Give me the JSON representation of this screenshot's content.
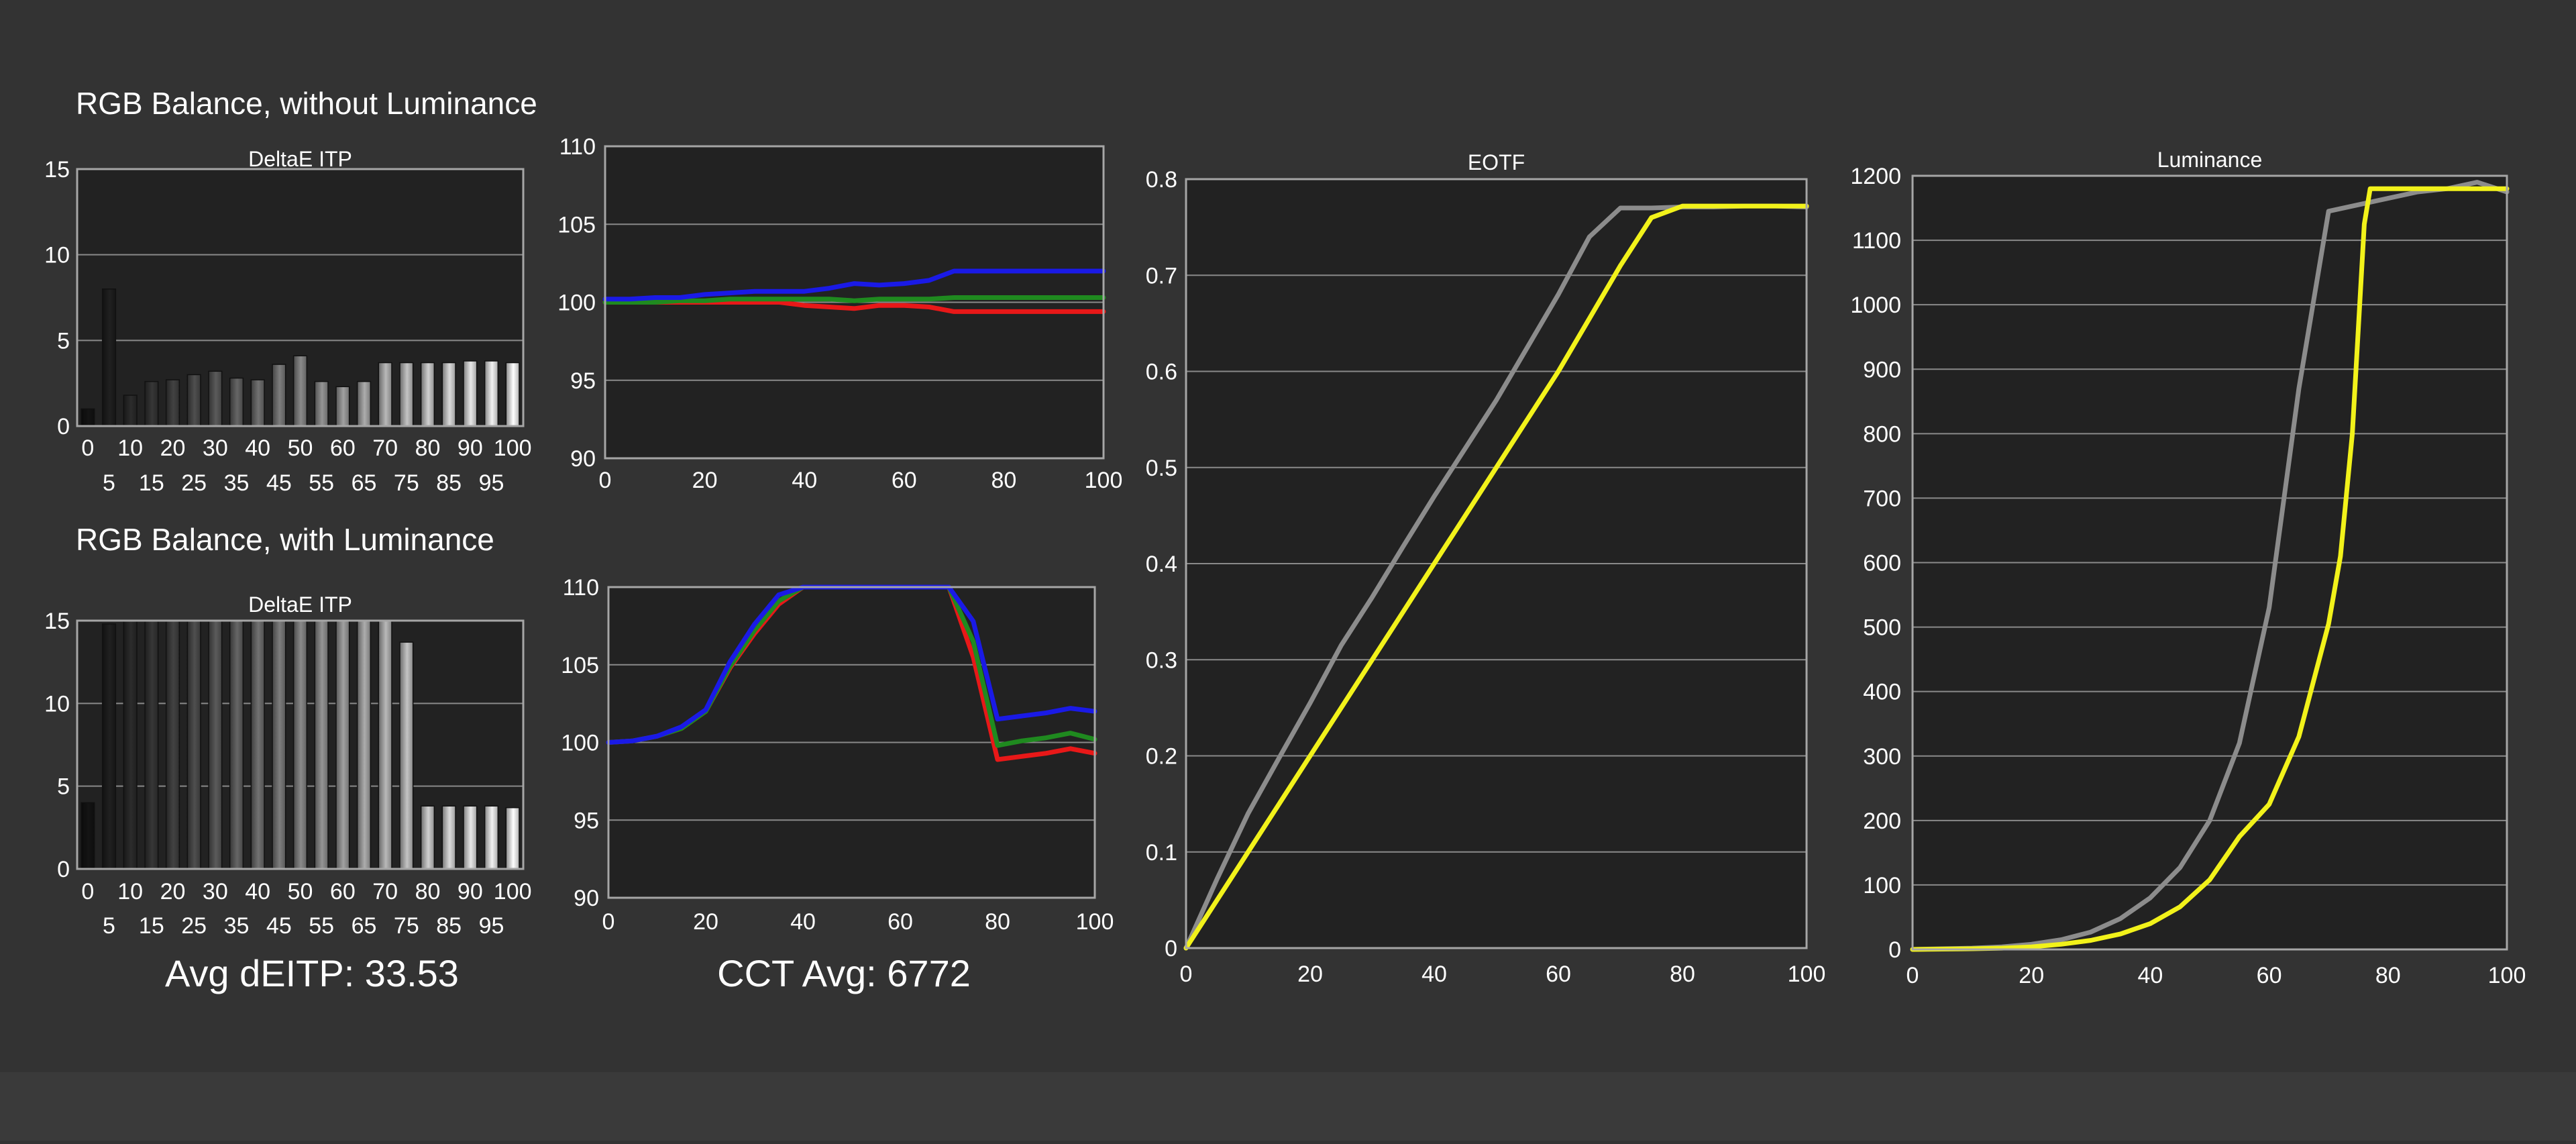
{
  "sections": {
    "top_title": "RGB Balance, without Luminance",
    "bottom_title": "RGB Balance, with Luminance"
  },
  "summary": {
    "avg_deitp": "Avg dEITP: 33.53",
    "cct_avg": "CCT Avg: 6772"
  },
  "colors": {
    "red": "#e81818",
    "green": "#1f8a1f",
    "blue": "#1a1ae6",
    "gray": "#8c8c8c",
    "yellow": "#f2f21a",
    "background": "#333333",
    "plot": "#222222"
  },
  "chart_data": [
    {
      "id": "deltae-top",
      "type": "bar",
      "title": "DeltaE ITP",
      "categories": [
        "0",
        "5",
        "10",
        "15",
        "20",
        "25",
        "30",
        "35",
        "40",
        "45",
        "50",
        "55",
        "60",
        "65",
        "70",
        "75",
        "80",
        "85",
        "90",
        "95",
        "100"
      ],
      "values": [
        1.0,
        8.0,
        1.8,
        2.6,
        2.7,
        3.0,
        3.2,
        2.8,
        2.7,
        3.6,
        4.1,
        2.6,
        2.3,
        2.6,
        3.7,
        3.7,
        3.7,
        3.7,
        3.8,
        3.8,
        3.7
      ],
      "ylim": [
        0,
        15
      ],
      "yticks": [
        "0",
        "5",
        "10",
        "15"
      ],
      "grid": true
    },
    {
      "id": "rgb-top",
      "type": "line",
      "title": "",
      "xlim": [
        0,
        100
      ],
      "ylim": [
        90,
        110
      ],
      "xticks": [
        "0",
        "20",
        "40",
        "60",
        "80",
        "100"
      ],
      "yticks": [
        "90",
        "95",
        "100",
        "105",
        "110"
      ],
      "grid": true,
      "series": [
        {
          "color": "#e81818",
          "x": [
            0,
            5,
            10,
            15,
            20,
            25,
            30,
            35,
            40,
            45,
            50,
            55,
            60,
            65,
            70,
            75,
            80,
            85,
            90,
            95,
            100
          ],
          "y": [
            100,
            100,
            100,
            100,
            100,
            100,
            100,
            100,
            99.8,
            99.7,
            99.6,
            99.8,
            99.8,
            99.7,
            99.4,
            99.4,
            99.4,
            99.4,
            99.4,
            99.4,
            99.4
          ]
        },
        {
          "color": "#1f8a1f",
          "x": [
            0,
            5,
            10,
            15,
            20,
            25,
            30,
            35,
            40,
            45,
            50,
            55,
            60,
            65,
            70,
            75,
            80,
            85,
            90,
            95,
            100
          ],
          "y": [
            100,
            100,
            100,
            100.1,
            100.1,
            100.2,
            100.2,
            100.2,
            100.2,
            100.2,
            100.1,
            100.2,
            100.2,
            100.2,
            100.3,
            100.3,
            100.3,
            100.3,
            100.3,
            100.3,
            100.3
          ]
        },
        {
          "color": "#1a1ae6",
          "x": [
            0,
            5,
            10,
            15,
            20,
            25,
            30,
            35,
            40,
            45,
            50,
            55,
            60,
            65,
            70,
            75,
            80,
            85,
            90,
            95,
            100
          ],
          "y": [
            100.2,
            100.2,
            100.3,
            100.3,
            100.5,
            100.6,
            100.7,
            100.7,
            100.7,
            100.9,
            101.2,
            101.1,
            101.2,
            101.4,
            102.0,
            102.0,
            102.0,
            102.0,
            102.0,
            102.0,
            102.0
          ]
        }
      ]
    },
    {
      "id": "deltae-bottom",
      "type": "bar",
      "title": "DeltaE ITP",
      "categories": [
        "0",
        "5",
        "10",
        "15",
        "20",
        "25",
        "30",
        "35",
        "40",
        "45",
        "50",
        "55",
        "60",
        "65",
        "70",
        "75",
        "80",
        "85",
        "90",
        "95",
        "100"
      ],
      "values": [
        4.0,
        14.8,
        15,
        15,
        15,
        15,
        15,
        15,
        15,
        15,
        15,
        15,
        15,
        15,
        15,
        13.7,
        3.8,
        3.8,
        3.8,
        3.8,
        3.7
      ],
      "ylim": [
        0,
        15
      ],
      "yticks": [
        "0",
        "5",
        "10",
        "15"
      ],
      "grid": true
    },
    {
      "id": "rgb-bottom",
      "type": "line",
      "title": "",
      "xlim": [
        0,
        100
      ],
      "ylim": [
        90,
        110
      ],
      "xticks": [
        "0",
        "20",
        "40",
        "60",
        "80",
        "100"
      ],
      "yticks": [
        "90",
        "95",
        "100",
        "105",
        "110"
      ],
      "grid": true,
      "series": [
        {
          "color": "#e81818",
          "x": [
            0,
            5,
            10,
            15,
            20,
            25,
            30,
            35,
            40,
            45,
            50,
            55,
            60,
            65,
            70,
            75,
            80,
            85,
            90,
            95,
            100
          ],
          "y": [
            100,
            100.1,
            100.4,
            100.9,
            102,
            104.8,
            107,
            108.9,
            110,
            110,
            110,
            110,
            110,
            110,
            110,
            105.5,
            98.9,
            99.1,
            99.3,
            99.6,
            99.3
          ]
        },
        {
          "color": "#1f8a1f",
          "x": [
            0,
            5,
            10,
            15,
            20,
            25,
            30,
            35,
            40,
            45,
            50,
            55,
            60,
            65,
            70,
            75,
            80,
            85,
            90,
            95,
            100
          ],
          "y": [
            100,
            100.1,
            100.4,
            100.9,
            102,
            104.9,
            107.2,
            109.1,
            110,
            110,
            110,
            110,
            110,
            110,
            110,
            106.5,
            99.8,
            100.1,
            100.3,
            100.6,
            100.2
          ]
        },
        {
          "color": "#1a1ae6",
          "x": [
            0,
            5,
            10,
            15,
            20,
            25,
            30,
            35,
            40,
            45,
            50,
            55,
            60,
            65,
            70,
            75,
            80,
            85,
            90,
            95,
            100
          ],
          "y": [
            100,
            100.1,
            100.4,
            101,
            102.1,
            105.2,
            107.6,
            109.5,
            110,
            110,
            110,
            110,
            110,
            110,
            110,
            107.8,
            101.5,
            101.7,
            101.9,
            102.2,
            102
          ]
        }
      ]
    },
    {
      "id": "eotf",
      "type": "line",
      "title": "EOTF",
      "xlim": [
        0,
        100
      ],
      "ylim": [
        0,
        0.8
      ],
      "xticks": [
        "0",
        "20",
        "40",
        "60",
        "80",
        "100"
      ],
      "yticks": [
        "0",
        "0.1",
        "0.2",
        "0.3",
        "0.4",
        "0.5",
        "0.6",
        "0.7",
        "0.8"
      ],
      "grid": true,
      "series": [
        {
          "color": "#8c8c8c",
          "x": [
            0,
            5,
            10,
            15,
            20,
            25,
            30,
            35,
            40,
            45,
            50,
            55,
            60,
            65,
            70,
            75,
            80,
            85,
            90,
            95,
            100
          ],
          "y": [
            0,
            0.072,
            0.14,
            0.198,
            0.255,
            0.315,
            0.365,
            0.418,
            0.47,
            0.52,
            0.57,
            0.625,
            0.68,
            0.74,
            0.77,
            0.77,
            0.771,
            0.771,
            0.772,
            0.772,
            0.771
          ]
        },
        {
          "color": "#f2f21a",
          "x": [
            0,
            5,
            10,
            15,
            20,
            25,
            30,
            35,
            40,
            45,
            50,
            55,
            60,
            65,
            70,
            75,
            80,
            85,
            90,
            95,
            100
          ],
          "y": [
            0,
            0.05,
            0.1,
            0.15,
            0.2,
            0.25,
            0.3,
            0.35,
            0.4,
            0.45,
            0.5,
            0.55,
            0.6,
            0.655,
            0.71,
            0.76,
            0.772,
            0.772,
            0.772,
            0.772,
            0.772
          ]
        }
      ]
    },
    {
      "id": "luminance",
      "type": "line",
      "title": "Luminance",
      "xlim": [
        0,
        100
      ],
      "ylim": [
        0,
        1200
      ],
      "xticks": [
        "0",
        "20",
        "40",
        "60",
        "80",
        "100"
      ],
      "yticks": [
        "0",
        "100",
        "200",
        "300",
        "400",
        "500",
        "600",
        "700",
        "800",
        "900",
        "1000",
        "1100",
        "1200"
      ],
      "grid": true,
      "series": [
        {
          "color": "#8c8c8c",
          "x": [
            0,
            5,
            10,
            15,
            20,
            25,
            30,
            35,
            40,
            45,
            50,
            55,
            60,
            65,
            70,
            75,
            80,
            85,
            90,
            95,
            100
          ],
          "y": [
            0,
            1,
            2,
            4,
            8,
            15,
            27,
            48,
            80,
            127,
            200,
            320,
            530,
            870,
            1145,
            1155,
            1165,
            1175,
            1180,
            1190,
            1175
          ]
        },
        {
          "color": "#f2f21a",
          "x": [
            0,
            5,
            10,
            15,
            20,
            25,
            30,
            35,
            40,
            45,
            50,
            55,
            60,
            65,
            70,
            72,
            74,
            76,
            77,
            80,
            85,
            90,
            95,
            100
          ],
          "y": [
            0,
            0.5,
            1,
            2,
            4,
            8,
            14,
            24,
            40,
            66,
            108,
            175,
            225,
            330,
            505,
            610,
            800,
            1125,
            1180,
            1180,
            1180,
            1180,
            1180,
            1180
          ]
        }
      ]
    }
  ]
}
